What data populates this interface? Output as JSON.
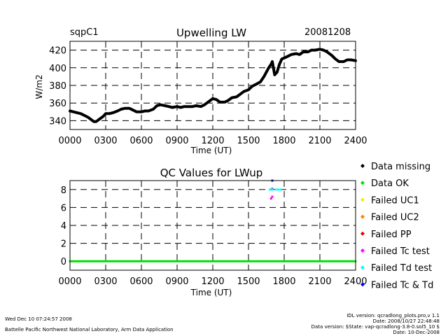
{
  "header": {
    "site": "sqpC1",
    "date": "20081208"
  },
  "chart_data": [
    {
      "type": "line",
      "title": "Upwelling LW",
      "xlabel": "Time (UT)",
      "ylabel": "W/m2",
      "xlim": [
        0,
        24
      ],
      "ylim": [
        330,
        430
      ],
      "x_tick_labels": [
        "0000",
        "0300",
        "0600",
        "0900",
        "1200",
        "1500",
        "1800",
        "2100",
        "2400"
      ],
      "y_tick_labels": [
        "340",
        "360",
        "380",
        "400",
        "420"
      ],
      "y_ticks": [
        340,
        360,
        380,
        400,
        420
      ],
      "grid": true,
      "series": [
        {
          "color": "#000000",
          "x": [
            0.0,
            0.3,
            0.6,
            0.9,
            1.2,
            1.5,
            1.8,
            2.0,
            2.2,
            2.5,
            2.8,
            3.0,
            3.3,
            3.6,
            4.0,
            4.3,
            4.6,
            5.0,
            5.3,
            5.6,
            6.0,
            6.3,
            6.6,
            7.0,
            7.3,
            7.6,
            8.0,
            8.3,
            8.6,
            9.0,
            9.3,
            9.6,
            10.0,
            10.3,
            10.6,
            11.0,
            11.3,
            11.6,
            12.0,
            12.3,
            12.6,
            13.0,
            13.3,
            13.6,
            14.0,
            14.3,
            14.6,
            15.0,
            15.3,
            15.6,
            16.0,
            16.3,
            16.5,
            16.7,
            16.9,
            17.0,
            17.2,
            17.4,
            17.6,
            17.8,
            18.0,
            18.3,
            18.6,
            19.0,
            19.3,
            19.6,
            20.0,
            20.3,
            20.6,
            21.0,
            21.3,
            21.6,
            22.0,
            22.3,
            22.6,
            23.0,
            23.3,
            23.6,
            24.0
          ],
          "y": [
            351,
            350,
            349,
            348,
            346,
            344,
            341,
            339,
            339,
            342,
            345,
            348,
            348,
            349,
            351,
            353,
            354,
            354,
            352,
            350,
            350,
            351,
            351,
            353,
            357,
            358,
            357,
            356,
            355,
            356,
            355,
            356,
            356,
            356,
            357,
            356,
            358,
            361,
            365,
            364,
            361,
            361,
            363,
            366,
            367,
            370,
            373,
            375,
            379,
            381,
            384,
            390,
            395,
            400,
            404,
            407,
            392,
            395,
            404,
            410,
            411,
            413,
            415,
            416,
            415,
            418,
            418,
            420,
            420,
            421,
            420,
            418,
            414,
            410,
            407,
            407,
            409,
            409,
            408
          ]
        }
      ]
    },
    {
      "type": "scatter",
      "title": "QC Values for LWup",
      "xlabel": "Time (UT)",
      "xlim": [
        0,
        24
      ],
      "ylim": [
        -1,
        9
      ],
      "x_tick_labels": [
        "0000",
        "0300",
        "0600",
        "0900",
        "1200",
        "1500",
        "1800",
        "2100",
        "2400"
      ],
      "y_tick_labels": [
        "0",
        "2",
        "4",
        "6",
        "8"
      ],
      "y_ticks": [
        0,
        2,
        4,
        6,
        8
      ],
      "grid": true,
      "legend_position": "right",
      "legend": [
        {
          "label": "Data missing",
          "color": "#000000"
        },
        {
          "label": "Data OK",
          "color": "#00e000"
        },
        {
          "label": "Failed UC1",
          "color": "#f0f000"
        },
        {
          "label": "Failed UC2",
          "color": "#ff8000"
        },
        {
          "label": "Failed PP",
          "color": "#e00000"
        },
        {
          "label": "Failed Tc test",
          "color": "#ff00ff"
        },
        {
          "label": "Failed Td test",
          "color": "#00ffff"
        },
        {
          "label": "Failed Tc & Td",
          "color": "#0000ff"
        }
      ],
      "series": [
        {
          "color": "#00e000",
          "x": [
            0,
            24
          ],
          "y": [
            0,
            0
          ],
          "line": true
        },
        {
          "color": "#ff00ff",
          "x": [
            16.9,
            17.0,
            17.0
          ],
          "y": [
            7,
            7.2,
            8.1
          ]
        },
        {
          "color": "#00ffff",
          "x": [
            16.8,
            17.0,
            17.3,
            17.5,
            17.7
          ],
          "y": [
            8,
            8,
            8,
            8,
            8
          ]
        },
        {
          "color": "#0000ff",
          "x": [
            17.0
          ],
          "y": [
            9
          ]
        }
      ]
    }
  ],
  "footer": {
    "left_line1": "Wed Dec 10 07:24:57 2008",
    "left_line2": "Battelle Pacific Northwest National Laboratory, Arm Data Application",
    "right_line1": "IDL version: qcradlong_plots.pro,v 1.1",
    "right_line2": "Date: 2008/10/27 22:48:48",
    "right_line3": "Data version: $State: vap-qcradlong-3.8-0.sol5_10 $",
    "right_line4": "Date: 10-Dec-2008"
  }
}
